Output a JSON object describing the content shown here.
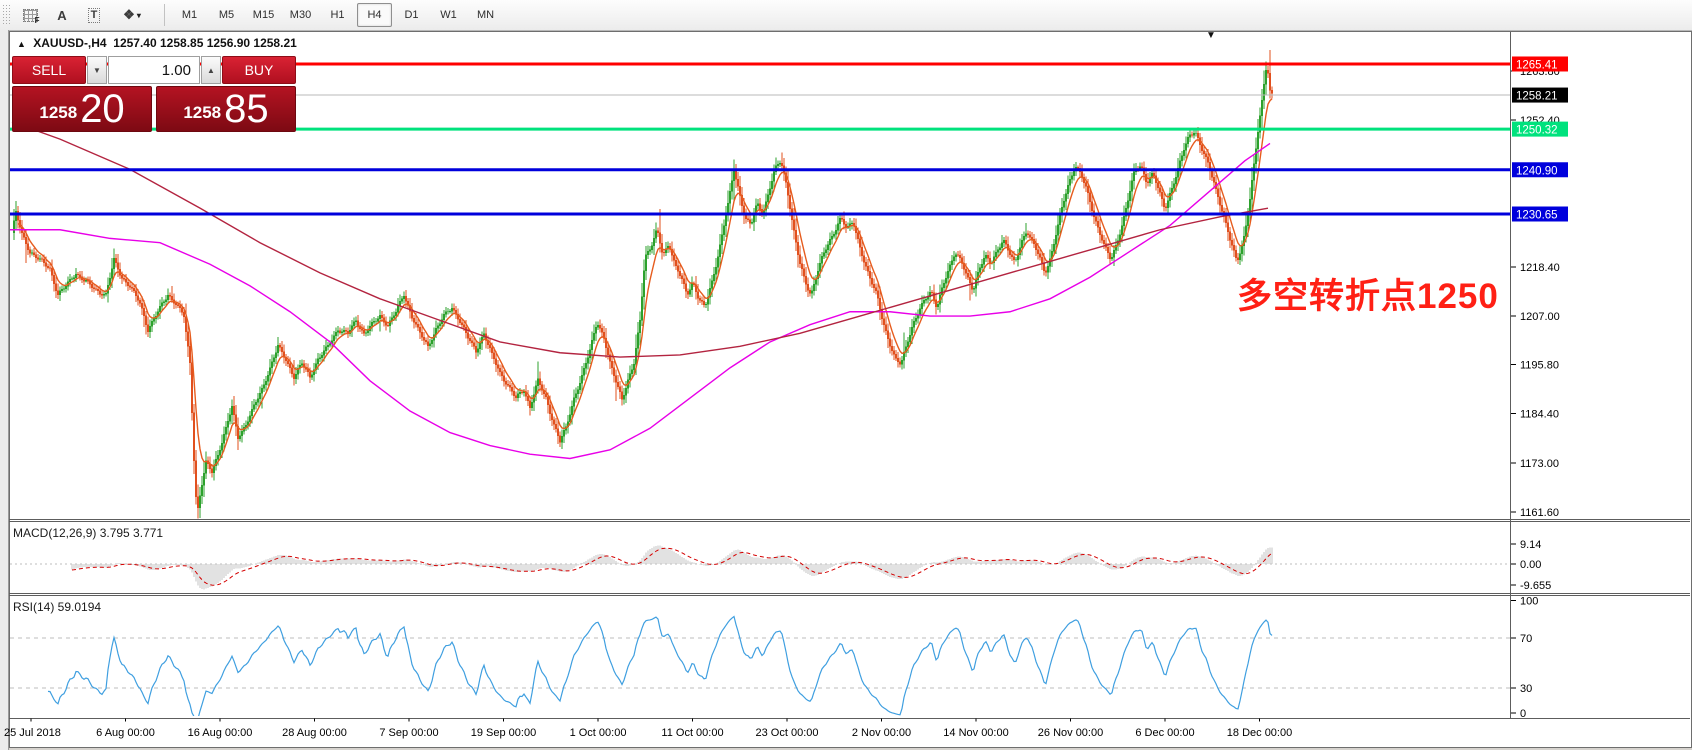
{
  "toolbar": {
    "tools": [
      {
        "id": "snap-grid",
        "glyph": "F"
      },
      {
        "id": "text-label",
        "glyph": "A"
      },
      {
        "id": "text-box",
        "glyph": "T"
      },
      {
        "id": "objects",
        "glyph": "❖",
        "caret": "▾"
      }
    ],
    "periods": [
      "M1",
      "M5",
      "M15",
      "M30",
      "H1",
      "H4",
      "D1",
      "W1",
      "MN"
    ],
    "active_period": "H4"
  },
  "chart": {
    "title": {
      "collapse_arrow": "▲",
      "symbol": "XAUUSD-,H4",
      "ohlc": "1257.40 1258.85 1256.90 1258.21",
      "top_caret": "▼"
    },
    "one_click": {
      "sell_label": "SELL",
      "buy_label": "BUY",
      "volume": "1.00",
      "spin_down": "▼",
      "spin_up": "▲",
      "bid_small": "1258",
      "bid_big": "20",
      "ask_small": "1258",
      "ask_big": "85"
    },
    "annotation": {
      "text": "多空转折点1250",
      "color": "#ff2015"
    }
  },
  "chart_data": {
    "type": "candlestick",
    "symbol": "XAUUSD",
    "timeframe": "H4",
    "title": "XAUUSD-,H4 1257.40 1258.85 1256.90 1258.21",
    "current_price": 1258.21,
    "colors": {
      "candle_up": "#2ca12c",
      "candle_down": "#e1501e",
      "ma_fast": "#e65c1e",
      "ma_mid": "#e800e8",
      "ma_slow": "#b32440",
      "level_red": "#ff0000",
      "level_green": "#00e27d",
      "level_blue": "#0000dc",
      "current_line": "#b8b8b8",
      "macd_hist": "#c6c6c6",
      "macd_signal": "#d40000",
      "rsi_line": "#3f9fe0",
      "dashed_level": "#bdbdbd"
    },
    "horizontal_levels": [
      {
        "price": 1265.41,
        "label": "1265.41",
        "color": "#ff0000",
        "thick": 3
      },
      {
        "price": 1250.32,
        "label": "1250.32",
        "color": "#00e27d",
        "thick": 3
      },
      {
        "price": 1240.9,
        "label": "1240.90",
        "color": "#0000dc",
        "thick": 3
      },
      {
        "price": 1230.65,
        "label": "1230.65",
        "color": "#0000dc",
        "thick": 3
      }
    ],
    "current_price_tag": {
      "price": 1258.21,
      "label": "1258.21",
      "bg": "#000000"
    },
    "y_ticks": [
      1263.8,
      1252.4,
      1218.4,
      1207.0,
      1195.8,
      1184.4,
      1173.0,
      1161.6
    ],
    "x_labels": [
      "25 Jul 2018",
      "6 Aug 00:00",
      "16 Aug 00:00",
      "28 Aug 00:00",
      "7 Sep 00:00",
      "19 Sep 00:00",
      "1 Oct 00:00",
      "11 Oct 00:00",
      "23 Oct 00:00",
      "2 Nov 00:00",
      "14 Nov 00:00",
      "26 Nov 00:00",
      "6 Dec 00:00",
      "18 Dec 00:00"
    ],
    "close_path": [
      [
        10,
        1224
      ],
      [
        16,
        1231
      ],
      [
        22,
        1226
      ],
      [
        30,
        1222
      ],
      [
        40,
        1220
      ],
      [
        50,
        1218
      ],
      [
        58,
        1212
      ],
      [
        66,
        1214
      ],
      [
        76,
        1217
      ],
      [
        86,
        1215
      ],
      [
        96,
        1213
      ],
      [
        106,
        1212
      ],
      [
        114,
        1220
      ],
      [
        122,
        1216
      ],
      [
        130,
        1214
      ],
      [
        140,
        1210
      ],
      [
        148,
        1204
      ],
      [
        158,
        1208
      ],
      [
        168,
        1212
      ],
      [
        176,
        1210
      ],
      [
        184,
        1207
      ],
      [
        190,
        1196
      ],
      [
        194,
        1174
      ],
      [
        197,
        1161
      ],
      [
        201,
        1167
      ],
      [
        206,
        1173
      ],
      [
        212,
        1171
      ],
      [
        218,
        1175
      ],
      [
        226,
        1181
      ],
      [
        232,
        1186
      ],
      [
        238,
        1179
      ],
      [
        246,
        1182
      ],
      [
        254,
        1186
      ],
      [
        262,
        1190
      ],
      [
        270,
        1195
      ],
      [
        278,
        1200
      ],
      [
        286,
        1197
      ],
      [
        294,
        1193
      ],
      [
        302,
        1196
      ],
      [
        310,
        1193
      ],
      [
        318,
        1197
      ],
      [
        328,
        1200
      ],
      [
        338,
        1204
      ],
      [
        348,
        1203
      ],
      [
        356,
        1206
      ],
      [
        364,
        1203
      ],
      [
        372,
        1205
      ],
      [
        380,
        1207
      ],
      [
        388,
        1205
      ],
      [
        396,
        1208
      ],
      [
        404,
        1212
      ],
      [
        412,
        1207
      ],
      [
        420,
        1203
      ],
      [
        428,
        1200
      ],
      [
        436,
        1204
      ],
      [
        444,
        1207
      ],
      [
        452,
        1209
      ],
      [
        460,
        1206
      ],
      [
        468,
        1202
      ],
      [
        476,
        1199
      ],
      [
        484,
        1203
      ],
      [
        492,
        1198
      ],
      [
        500,
        1194
      ],
      [
        508,
        1191
      ],
      [
        516,
        1188
      ],
      [
        524,
        1190
      ],
      [
        530,
        1186
      ],
      [
        538,
        1192
      ],
      [
        546,
        1188
      ],
      [
        554,
        1182
      ],
      [
        560,
        1178
      ],
      [
        566,
        1181
      ],
      [
        574,
        1188
      ],
      [
        582,
        1193
      ],
      [
        590,
        1199
      ],
      [
        597,
        1206
      ],
      [
        604,
        1202
      ],
      [
        610,
        1196
      ],
      [
        616,
        1192
      ],
      [
        622,
        1188
      ],
      [
        628,
        1192
      ],
      [
        634,
        1196
      ],
      [
        640,
        1206
      ],
      [
        645,
        1221
      ],
      [
        651,
        1223
      ],
      [
        657,
        1227
      ],
      [
        663,
        1221
      ],
      [
        669,
        1224
      ],
      [
        675,
        1219
      ],
      [
        681,
        1216
      ],
      [
        687,
        1212
      ],
      [
        693,
        1215
      ],
      [
        699,
        1211
      ],
      [
        705,
        1209
      ],
      [
        711,
        1214
      ],
      [
        717,
        1220
      ],
      [
        723,
        1227
      ],
      [
        729,
        1234
      ],
      [
        734,
        1241
      ],
      [
        739,
        1236
      ],
      [
        745,
        1230
      ],
      [
        751,
        1228
      ],
      [
        757,
        1233
      ],
      [
        763,
        1231
      ],
      [
        769,
        1236
      ],
      [
        775,
        1241
      ],
      [
        781,
        1243
      ],
      [
        787,
        1237
      ],
      [
        793,
        1228
      ],
      [
        799,
        1220
      ],
      [
        805,
        1215
      ],
      [
        811,
        1212
      ],
      [
        817,
        1217
      ],
      [
        823,
        1221
      ],
      [
        829,
        1224
      ],
      [
        835,
        1227
      ],
      [
        841,
        1230
      ],
      [
        847,
        1227
      ],
      [
        853,
        1229
      ],
      [
        859,
        1224
      ],
      [
        865,
        1219
      ],
      [
        871,
        1215
      ],
      [
        877,
        1212
      ],
      [
        883,
        1206
      ],
      [
        889,
        1201
      ],
      [
        895,
        1197
      ],
      [
        901,
        1196
      ],
      [
        907,
        1201
      ],
      [
        913,
        1205
      ],
      [
        919,
        1208
      ],
      [
        925,
        1211
      ],
      [
        931,
        1213
      ],
      [
        937,
        1209
      ],
      [
        943,
        1214
      ],
      [
        949,
        1218
      ],
      [
        955,
        1222
      ],
      [
        961,
        1220
      ],
      [
        967,
        1216
      ],
      [
        973,
        1213
      ],
      [
        979,
        1218
      ],
      [
        985,
        1221
      ],
      [
        991,
        1219
      ],
      [
        997,
        1222
      ],
      [
        1003,
        1225
      ],
      [
        1009,
        1222
      ],
      [
        1015,
        1219
      ],
      [
        1021,
        1224
      ],
      [
        1027,
        1227
      ],
      [
        1033,
        1224
      ],
      [
        1039,
        1221
      ],
      [
        1045,
        1217
      ],
      [
        1051,
        1221
      ],
      [
        1057,
        1227
      ],
      [
        1063,
        1233
      ],
      [
        1069,
        1238
      ],
      [
        1075,
        1242
      ],
      [
        1081,
        1240
      ],
      [
        1087,
        1236
      ],
      [
        1093,
        1231
      ],
      [
        1099,
        1227
      ],
      [
        1105,
        1223
      ],
      [
        1111,
        1220
      ],
      [
        1117,
        1224
      ],
      [
        1123,
        1229
      ],
      [
        1129,
        1235
      ],
      [
        1135,
        1241
      ],
      [
        1141,
        1242
      ],
      [
        1147,
        1238
      ],
      [
        1153,
        1240
      ],
      [
        1159,
        1236
      ],
      [
        1165,
        1232
      ],
      [
        1171,
        1236
      ],
      [
        1177,
        1240
      ],
      [
        1183,
        1245
      ],
      [
        1189,
        1249
      ],
      [
        1195,
        1250
      ],
      [
        1201,
        1246
      ],
      [
        1207,
        1243
      ],
      [
        1213,
        1239
      ],
      [
        1219,
        1234
      ],
      [
        1225,
        1229
      ],
      [
        1231,
        1224
      ],
      [
        1237,
        1220
      ],
      [
        1243,
        1224
      ],
      [
        1249,
        1232
      ],
      [
        1254,
        1242
      ],
      [
        1258,
        1250
      ],
      [
        1262,
        1257
      ],
      [
        1265,
        1263
      ],
      [
        1267,
        1266
      ],
      [
        1269,
        1261
      ],
      [
        1271,
        1257
      ],
      [
        1272,
        1258.2
      ]
    ],
    "ma_mid_path": [
      [
        10,
        1227
      ],
      [
        60,
        1227
      ],
      [
        110,
        1225
      ],
      [
        160,
        1224
      ],
      [
        210,
        1219
      ],
      [
        250,
        1214
      ],
      [
        290,
        1208
      ],
      [
        330,
        1201
      ],
      [
        370,
        1192
      ],
      [
        410,
        1185
      ],
      [
        450,
        1180
      ],
      [
        490,
        1177
      ],
      [
        530,
        1175
      ],
      [
        570,
        1174
      ],
      [
        610,
        1176
      ],
      [
        650,
        1181
      ],
      [
        690,
        1188
      ],
      [
        730,
        1195
      ],
      [
        770,
        1201
      ],
      [
        810,
        1205
      ],
      [
        850,
        1208
      ],
      [
        890,
        1208
      ],
      [
        930,
        1207
      ],
      [
        970,
        1207
      ],
      [
        1010,
        1208
      ],
      [
        1050,
        1211
      ],
      [
        1090,
        1216
      ],
      [
        1130,
        1222
      ],
      [
        1170,
        1228
      ],
      [
        1210,
        1236
      ],
      [
        1245,
        1243
      ],
      [
        1270,
        1247
      ]
    ],
    "ma_slow_path": [
      [
        12,
        1252
      ],
      [
        60,
        1248
      ],
      [
        130,
        1241
      ],
      [
        200,
        1232
      ],
      [
        260,
        1224
      ],
      [
        320,
        1217
      ],
      [
        380,
        1211
      ],
      [
        440,
        1206
      ],
      [
        500,
        1201
      ],
      [
        560,
        1198.5
      ],
      [
        620,
        1197.5
      ],
      [
        680,
        1198
      ],
      [
        740,
        1200
      ],
      [
        800,
        1203
      ],
      [
        860,
        1207
      ],
      [
        920,
        1211
      ],
      [
        980,
        1215
      ],
      [
        1040,
        1219
      ],
      [
        1100,
        1223
      ],
      [
        1160,
        1227
      ],
      [
        1220,
        1230
      ],
      [
        1268,
        1232
      ]
    ],
    "indicators": {
      "macd": {
        "label": "MACD(12,26,9) 3.795 3.771",
        "fast": 12,
        "slow": 26,
        "signal": 9,
        "scale": [
          "9.14",
          "0.00",
          "-9.655"
        ],
        "scale_values": [
          9.14,
          0.0,
          -9.655
        ]
      },
      "rsi": {
        "label": "RSI(14) 59.0194",
        "period": 14,
        "value": 59.0194,
        "scale": [
          "100",
          "70",
          "30",
          "0"
        ],
        "scale_values": [
          100,
          70,
          30,
          0
        ],
        "dashed_levels": [
          70,
          30
        ]
      }
    }
  }
}
